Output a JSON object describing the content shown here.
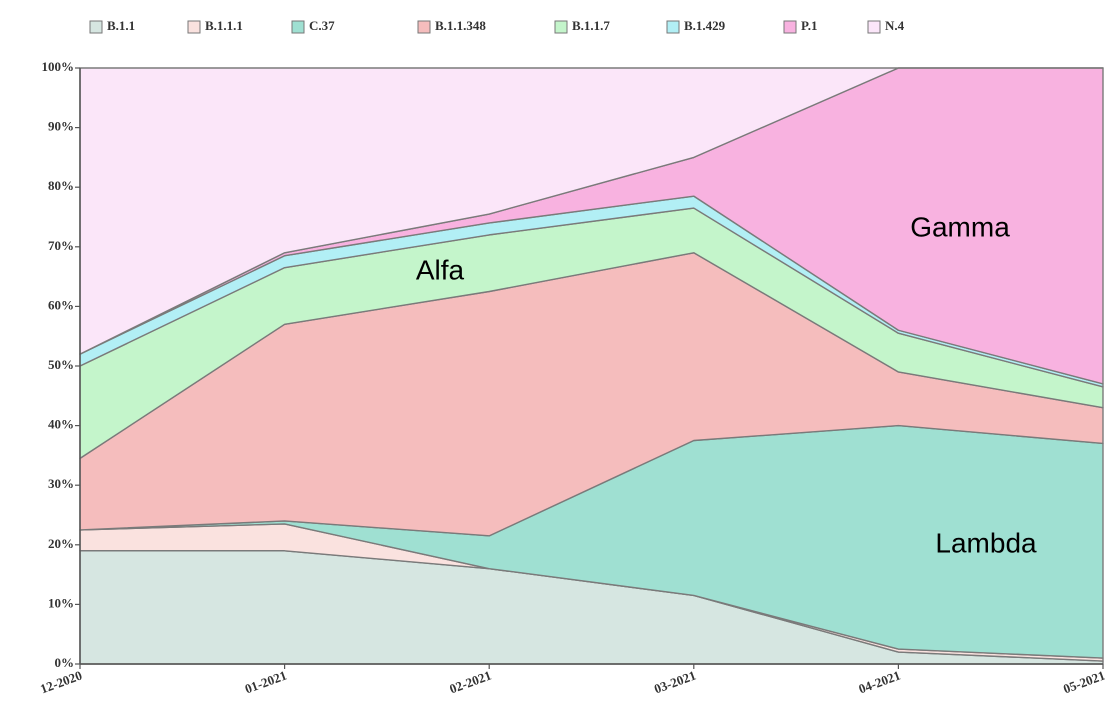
{
  "chart_data": {
    "type": "stacked_area",
    "categories": [
      "12-2020",
      "01-2021",
      "02-2021",
      "03-2021",
      "04-2021",
      "05-2021"
    ],
    "series": [
      {
        "name": "B.1.1",
        "color": "#d6e6e1",
        "values": [
          19,
          19,
          16,
          11.5,
          2,
          0.5
        ]
      },
      {
        "name": "B.1.1.1",
        "color": "#fae2df",
        "values": [
          3.5,
          4.5,
          0,
          0,
          0.5,
          0.5
        ]
      },
      {
        "name": "C.37",
        "color": "#9fe0d2",
        "values": [
          0,
          0.5,
          5.5,
          26,
          37.5,
          36
        ]
      },
      {
        "name": "B.1.1.348",
        "color": "#f5bdbd",
        "values": [
          12,
          33,
          41,
          31.5,
          9,
          6
        ]
      },
      {
        "name": "B.1.1.7",
        "color": "#c4f5cb",
        "values": [
          15.5,
          9.5,
          9.5,
          7.5,
          6.5,
          3.5
        ]
      },
      {
        "name": "B.1.429",
        "color": "#b2eff5",
        "values": [
          2,
          2,
          2,
          2,
          0.5,
          0.5
        ]
      },
      {
        "name": "P.1",
        "color": "#f8b2e0",
        "values": [
          0,
          0.5,
          1.5,
          6.5,
          44,
          53
        ]
      },
      {
        "name": "N.4",
        "color": "#fbe6f9",
        "values": [
          48,
          31,
          24.5,
          15,
          0,
          0
        ]
      }
    ],
    "ylim": [
      0,
      100
    ],
    "yticks": [
      {
        "value": 0,
        "label": "0%"
      },
      {
        "value": 10,
        "label": "10%"
      },
      {
        "value": 20,
        "label": "20%"
      },
      {
        "value": 30,
        "label": "30%"
      },
      {
        "value": 40,
        "label": "40%"
      },
      {
        "value": 50,
        "label": "50%"
      },
      {
        "value": 60,
        "label": "60%"
      },
      {
        "value": 70,
        "label": "70%"
      },
      {
        "value": 80,
        "label": "80%"
      },
      {
        "value": 90,
        "label": "90%"
      },
      {
        "value": 100,
        "label": "100%"
      }
    ],
    "annotations": [
      "Alfa",
      "Gamma",
      "Lambda"
    ]
  }
}
